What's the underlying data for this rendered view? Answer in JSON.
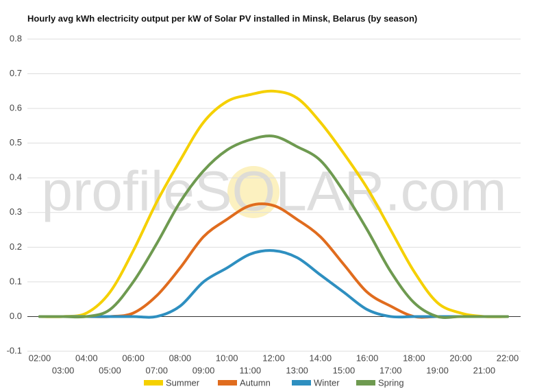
{
  "chart_data": {
    "type": "line",
    "title": "Hourly avg kWh electricity output per kW of Solar PV installed in Minsk, Belarus (by season)",
    "watermark": "profileSOLAR.com",
    "categories": [
      "02:00",
      "03:00",
      "04:00",
      "05:00",
      "06:00",
      "07:00",
      "08:00",
      "09:00",
      "10:00",
      "11:00",
      "12:00",
      "13:00",
      "14:00",
      "15:00",
      "16:00",
      "17:00",
      "18:00",
      "19:00",
      "20:00",
      "21:00",
      "22:00"
    ],
    "series": [
      {
        "name": "Summer",
        "color": "#f5d000",
        "values": [
          0,
          0,
          0.01,
          0.07,
          0.19,
          0.33,
          0.45,
          0.56,
          0.62,
          0.64,
          0.65,
          0.63,
          0.56,
          0.47,
          0.37,
          0.25,
          0.13,
          0.04,
          0.01,
          0,
          0
        ]
      },
      {
        "name": "Autumn",
        "color": "#e06c1e",
        "values": [
          0,
          0,
          0,
          0,
          0.01,
          0.06,
          0.14,
          0.23,
          0.28,
          0.32,
          0.32,
          0.28,
          0.23,
          0.15,
          0.07,
          0.03,
          0,
          0,
          0,
          0,
          0
        ]
      },
      {
        "name": "Winter",
        "color": "#2e8fc0",
        "values": [
          0,
          0,
          0,
          0,
          0,
          0,
          0.03,
          0.1,
          0.14,
          0.18,
          0.19,
          0.17,
          0.12,
          0.07,
          0.02,
          0,
          0,
          0,
          0,
          0,
          0
        ]
      },
      {
        "name": "Spring",
        "color": "#6e9a50",
        "values": [
          0,
          0,
          0,
          0.02,
          0.1,
          0.21,
          0.33,
          0.42,
          0.48,
          0.51,
          0.52,
          0.49,
          0.45,
          0.36,
          0.25,
          0.13,
          0.04,
          0,
          0,
          0,
          0
        ]
      }
    ],
    "ylim": [
      -0.1,
      0.8
    ],
    "yticks": [
      -0.1,
      {
        "value": 0,
        "label": "0.0"
      },
      0.1,
      0.2,
      0.3,
      0.4,
      0.5,
      0.6,
      0.7,
      0.8
    ],
    "grid": true,
    "legend": "bottom"
  }
}
